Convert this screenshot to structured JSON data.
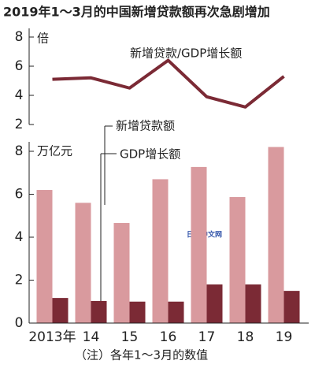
{
  "title": "2019年1～3月的中国新增贷款额再次急剧增加",
  "note": "（注）各年1～3月的数值",
  "watermark": "日经中文网",
  "chart_data": [
    {
      "type": "line",
      "y_unit": "倍",
      "ylim": [
        2,
        8
      ],
      "yticks": [
        2,
        4,
        6,
        8
      ],
      "series": [
        {
          "name": "新增贷款/GDP增长额",
          "color": "#7b2a35",
          "values": [
            5.1,
            5.2,
            4.5,
            6.4,
            3.9,
            3.2,
            5.3
          ]
        }
      ]
    },
    {
      "type": "bar",
      "y_unit": "万亿元",
      "ylim": [
        0,
        8
      ],
      "yticks": [
        0,
        2,
        4,
        6,
        8
      ],
      "categories": [
        "2013年",
        "14",
        "15",
        "16",
        "17",
        "18",
        "19"
      ],
      "series": [
        {
          "name": "新增贷款额",
          "color": "#d99a9e",
          "values": [
            6.2,
            5.6,
            4.66,
            6.7,
            7.27,
            5.87,
            8.2
          ]
        },
        {
          "name": "GDP增长额",
          "color": "#7b2a35",
          "values": [
            1.17,
            1.03,
            1.0,
            1.0,
            1.8,
            1.8,
            1.5
          ]
        }
      ]
    }
  ]
}
